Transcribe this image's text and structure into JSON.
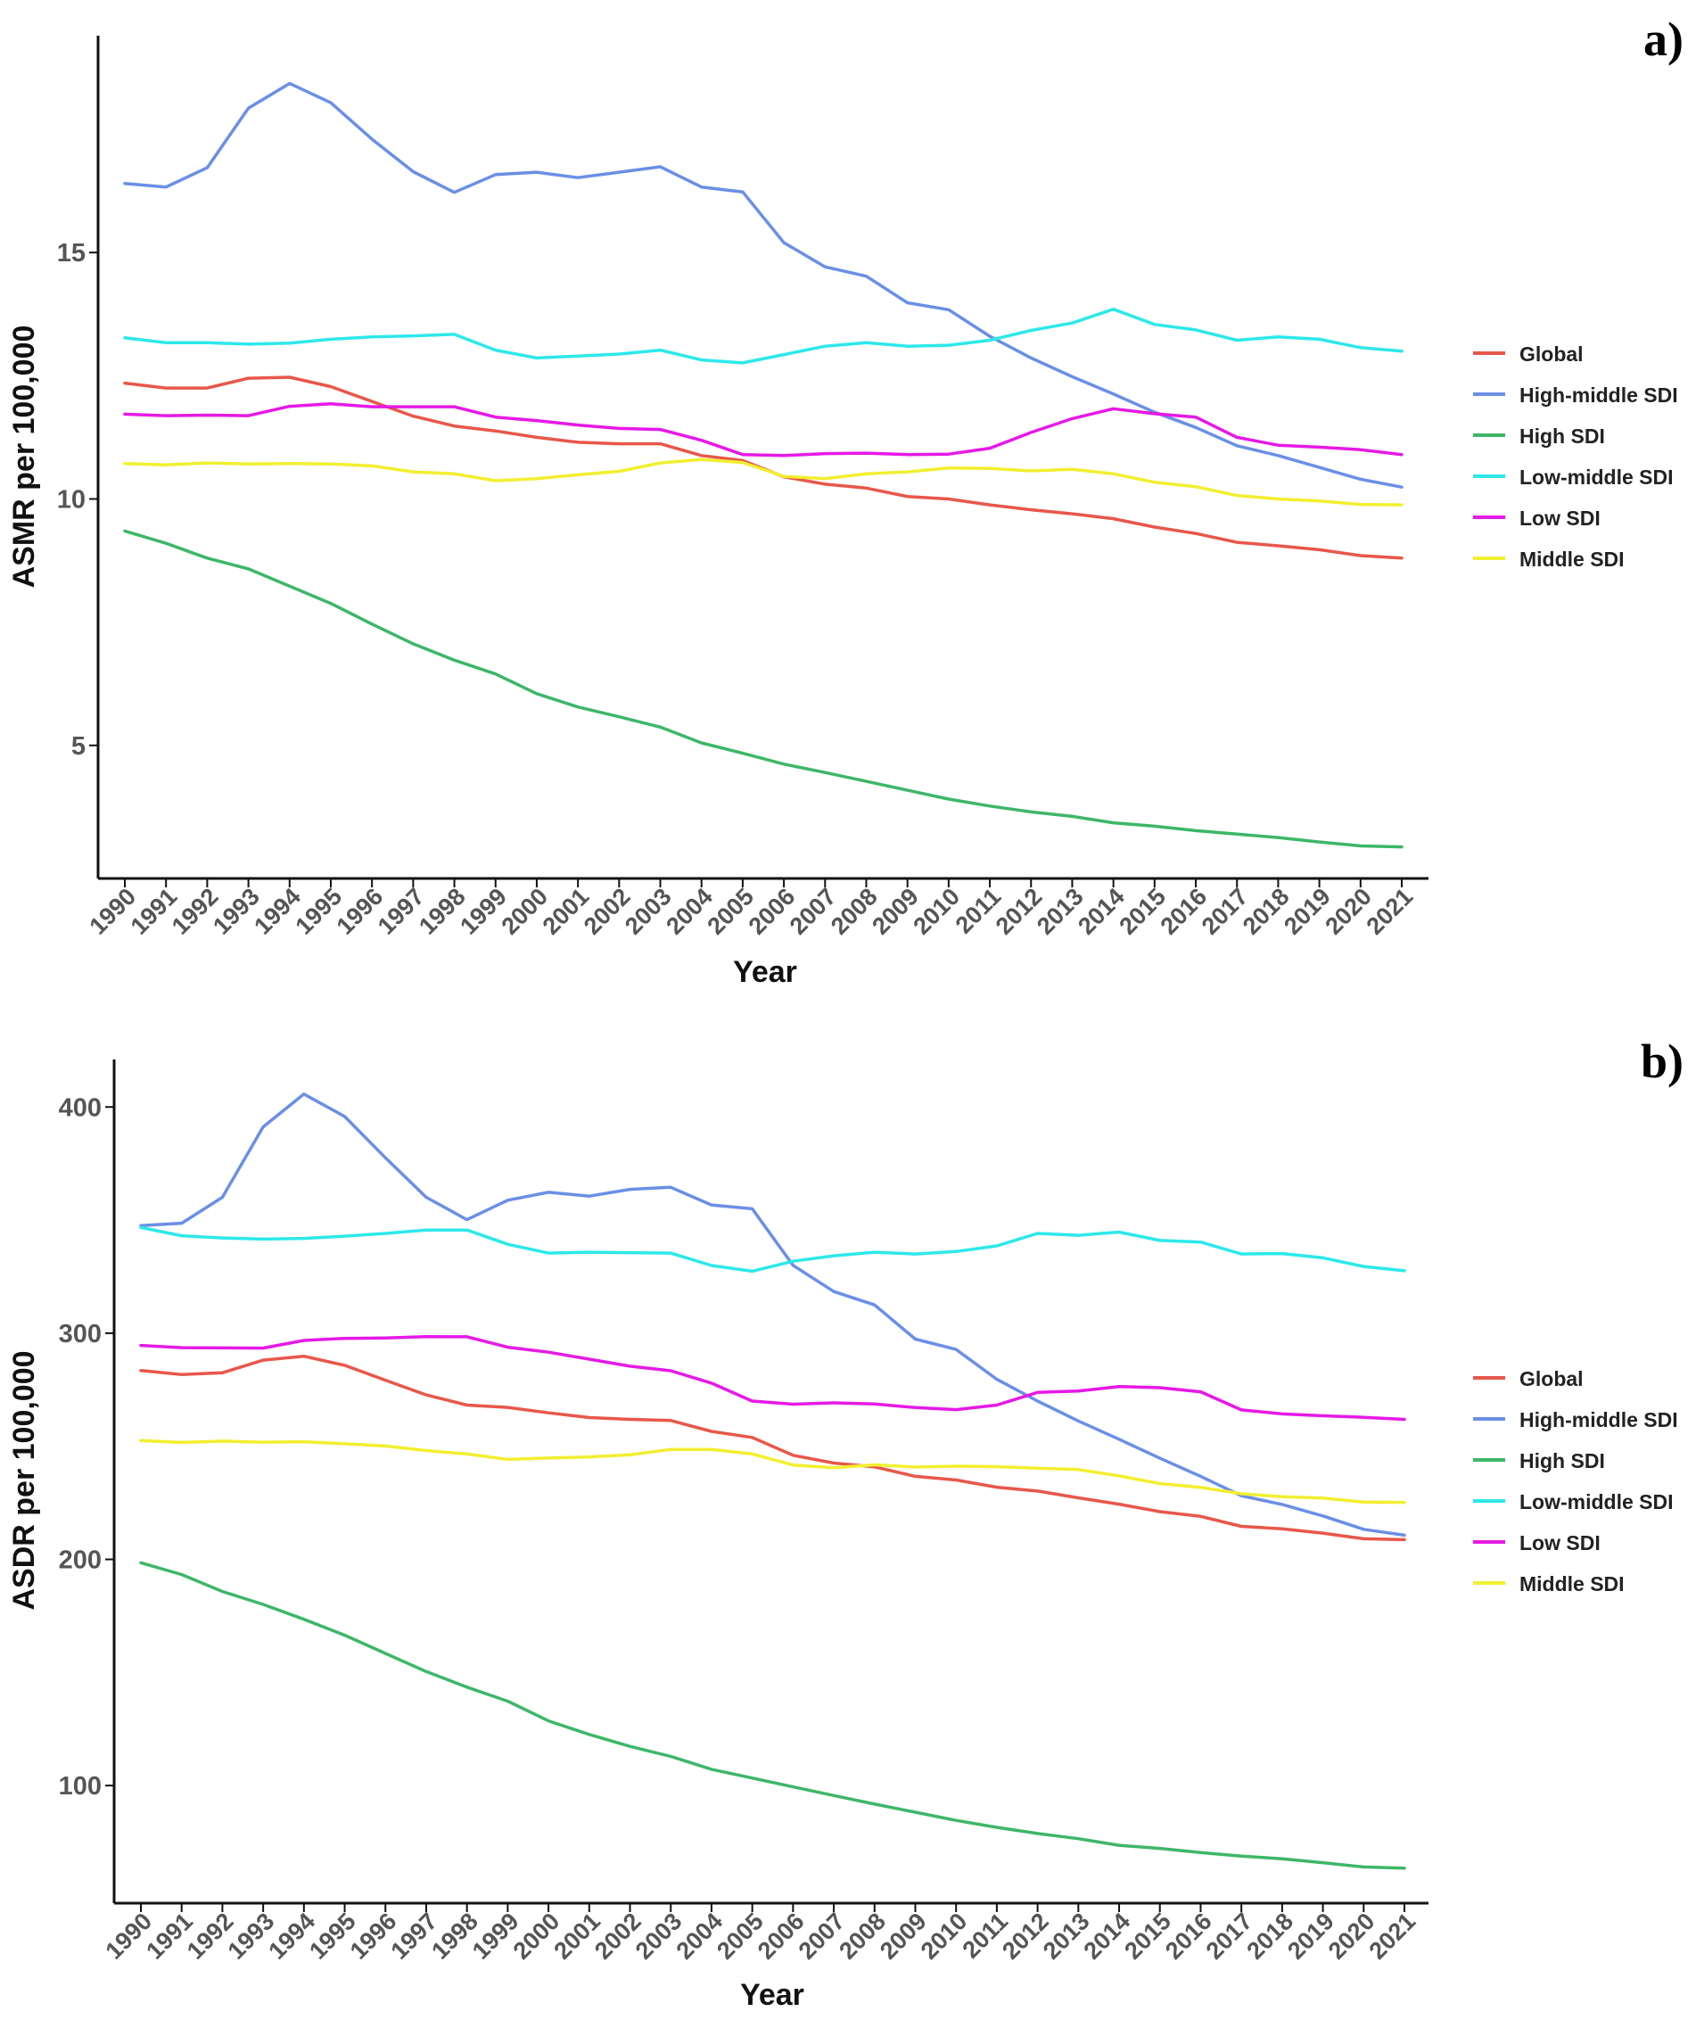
{
  "colors": {
    "Global": "#e8574a",
    "High-middle SDI": "#6a8fe6",
    "High SDI": "#3db768",
    "Low-middle SDI": "#2de8ea",
    "Low SDI": "#e619e6",
    "Middle SDI": "#f2ef30"
  },
  "chart_data": [
    {
      "type": "line",
      "panel": "a)",
      "xlabel": "Year",
      "ylabel": "ASMR per 100,000",
      "ylim": [
        2.3,
        19.4
      ],
      "yticks": [
        5,
        10,
        15
      ],
      "x": [
        "1990",
        "1991",
        "1992",
        "1993",
        "1994",
        "1995",
        "1996",
        "1997",
        "1998",
        "1999",
        "2000",
        "2001",
        "2002",
        "2003",
        "2004",
        "2005",
        "2006",
        "2007",
        "2008",
        "2009",
        "2010",
        "2011",
        "2012",
        "2013",
        "2014",
        "2015",
        "2016",
        "2017",
        "2018",
        "2019",
        "2020",
        "2021"
      ],
      "legend": [
        "Global",
        "High-middle SDI",
        "High SDI",
        "Low-middle SDI",
        "Low SDI",
        "Middle SDI"
      ],
      "series": [
        {
          "name": "Global",
          "values": [
            12.35,
            12.25,
            12.25,
            12.45,
            12.47,
            12.28,
            11.98,
            11.68,
            11.48,
            11.38,
            11.25,
            11.15,
            11.12,
            11.12,
            10.88,
            10.78,
            10.45,
            10.3,
            10.22,
            10.05,
            10.0,
            9.88,
            9.78,
            9.7,
            9.6,
            9.43,
            9.3,
            9.12,
            9.05,
            8.97,
            8.85,
            8.8
          ]
        },
        {
          "name": "High-middle SDI",
          "values": [
            16.4,
            16.33,
            16.72,
            17.93,
            18.43,
            18.04,
            17.3,
            16.64,
            16.22,
            16.58,
            16.63,
            16.52,
            16.63,
            16.74,
            16.33,
            16.23,
            15.2,
            14.71,
            14.52,
            13.98,
            13.84,
            13.3,
            12.86,
            12.48,
            12.13,
            11.76,
            11.45,
            11.08,
            10.88,
            10.64,
            10.4,
            10.24
          ]
        },
        {
          "name": "High SDI",
          "values": [
            9.35,
            9.1,
            8.8,
            8.58,
            8.23,
            7.88,
            7.46,
            7.06,
            6.73,
            6.45,
            6.05,
            5.78,
            5.58,
            5.37,
            5.05,
            4.84,
            4.62,
            4.45,
            4.27,
            4.09,
            3.91,
            3.77,
            3.65,
            3.56,
            3.43,
            3.36,
            3.27,
            3.2,
            3.13,
            3.04,
            2.96,
            2.94
          ]
        },
        {
          "name": "Low-middle SDI",
          "values": [
            13.27,
            13.17,
            13.17,
            13.14,
            13.16,
            13.24,
            13.29,
            13.31,
            13.34,
            13.02,
            12.86,
            12.9,
            12.94,
            13.02,
            12.82,
            12.76,
            12.93,
            13.1,
            13.17,
            13.1,
            13.12,
            13.22,
            13.42,
            13.57,
            13.85,
            13.54,
            13.43,
            13.22,
            13.29,
            13.24,
            13.07,
            13.0
          ]
        },
        {
          "name": "Low SDI",
          "values": [
            11.72,
            11.69,
            11.7,
            11.69,
            11.88,
            11.93,
            11.87,
            11.87,
            11.87,
            11.66,
            11.59,
            11.5,
            11.43,
            11.41,
            11.19,
            10.9,
            10.88,
            10.92,
            10.93,
            10.9,
            10.91,
            11.03,
            11.35,
            11.63,
            11.83,
            11.73,
            11.66,
            11.25,
            11.09,
            11.05,
            11.0,
            10.9
          ]
        },
        {
          "name": "Middle SDI",
          "values": [
            10.72,
            10.69,
            10.73,
            10.71,
            10.72,
            10.71,
            10.67,
            10.55,
            10.51,
            10.37,
            10.41,
            10.49,
            10.56,
            10.73,
            10.8,
            10.74,
            10.46,
            10.41,
            10.51,
            10.55,
            10.63,
            10.62,
            10.57,
            10.6,
            10.51,
            10.34,
            10.25,
            10.07,
            10.0,
            9.96,
            9.89,
            9.88
          ]
        }
      ]
    },
    {
      "type": "line",
      "panel": "b)",
      "xlabel": "Year",
      "ylabel": "ASDR per 100,000",
      "ylim": [
        48,
        421
      ],
      "yticks": [
        100,
        200,
        300,
        400
      ],
      "x": [
        "1990",
        "1991",
        "1992",
        "1993",
        "1994",
        "1995",
        "1996",
        "1997",
        "1998",
        "1999",
        "2000",
        "2001",
        "2002",
        "2003",
        "2004",
        "2005",
        "2006",
        "2007",
        "2008",
        "2009",
        "2010",
        "2011",
        "2012",
        "2013",
        "2014",
        "2015",
        "2016",
        "2017",
        "2018",
        "2019",
        "2020",
        "2021"
      ],
      "legend": [
        "Global",
        "High-middle SDI",
        "High SDI",
        "Low-middle SDI",
        "Low SDI",
        "Middle SDI"
      ],
      "series": [
        {
          "name": "Global",
          "values": [
            283.5,
            281.7,
            282.5,
            288.1,
            289.8,
            285.8,
            279.2,
            272.7,
            268.2,
            267.2,
            264.8,
            262.7,
            261.9,
            261.4,
            256.6,
            253.9,
            246.0,
            242.6,
            240.9,
            236.7,
            235.1,
            231.9,
            230.2,
            227.2,
            224.4,
            221.1,
            219.0,
            214.6,
            213.5,
            211.6,
            209.1,
            208.7
          ]
        },
        {
          "name": "High-middle SDI",
          "values": [
            347.6,
            348.6,
            360.1,
            391.2,
            405.7,
            395.8,
            377.5,
            360.1,
            350.2,
            358.8,
            362.3,
            360.6,
            363.6,
            364.5,
            356.7,
            355.0,
            330.0,
            318.4,
            312.5,
            297.4,
            292.8,
            279.6,
            270.0,
            261.2,
            253.1,
            244.7,
            236.7,
            228.1,
            224.3,
            219.2,
            213.3,
            210.7
          ]
        },
        {
          "name": "High SDI",
          "values": [
            198.5,
            193.3,
            185.8,
            180.1,
            173.5,
            166.5,
            158.4,
            150.4,
            143.5,
            137.3,
            128.6,
            122.6,
            117.3,
            112.9,
            107.2,
            103.3,
            99.4,
            95.6,
            91.8,
            88.2,
            84.6,
            81.5,
            78.8,
            76.5,
            73.6,
            72.2,
            70.4,
            68.8,
            67.6,
            65.9,
            64.0,
            63.5
          ]
        },
        {
          "name": "Low-middle SDI",
          "values": [
            346.7,
            343.1,
            342.1,
            341.6,
            341.9,
            342.9,
            344.1,
            345.6,
            345.6,
            339.3,
            335.4,
            335.8,
            335.6,
            335.4,
            329.9,
            327.4,
            331.8,
            334.2,
            335.8,
            335.0,
            336.1,
            338.6,
            344.1,
            343.3,
            344.7,
            341.0,
            340.3,
            335.0,
            335.2,
            333.3,
            329.5,
            327.6
          ]
        },
        {
          "name": "Low SDI",
          "values": [
            294.6,
            293.6,
            293.5,
            293.4,
            296.8,
            297.7,
            297.9,
            298.5,
            298.4,
            293.8,
            291.6,
            288.5,
            285.4,
            283.4,
            277.9,
            270.0,
            268.6,
            269.2,
            268.7,
            267.1,
            266.2,
            268.2,
            273.8,
            274.4,
            276.4,
            275.9,
            274.1,
            266.1,
            264.3,
            263.5,
            262.8,
            261.9
          ]
        },
        {
          "name": "Middle SDI",
          "values": [
            252.5,
            251.7,
            252.3,
            251.8,
            252.0,
            251.1,
            250.1,
            248.1,
            246.6,
            244.2,
            244.8,
            245.3,
            246.2,
            248.6,
            248.6,
            246.6,
            241.7,
            240.5,
            241.8,
            240.8,
            241.2,
            241.0,
            240.3,
            239.7,
            236.9,
            233.5,
            231.8,
            229.0,
            227.7,
            227.1,
            225.3,
            225.2
          ]
        }
      ]
    }
  ]
}
